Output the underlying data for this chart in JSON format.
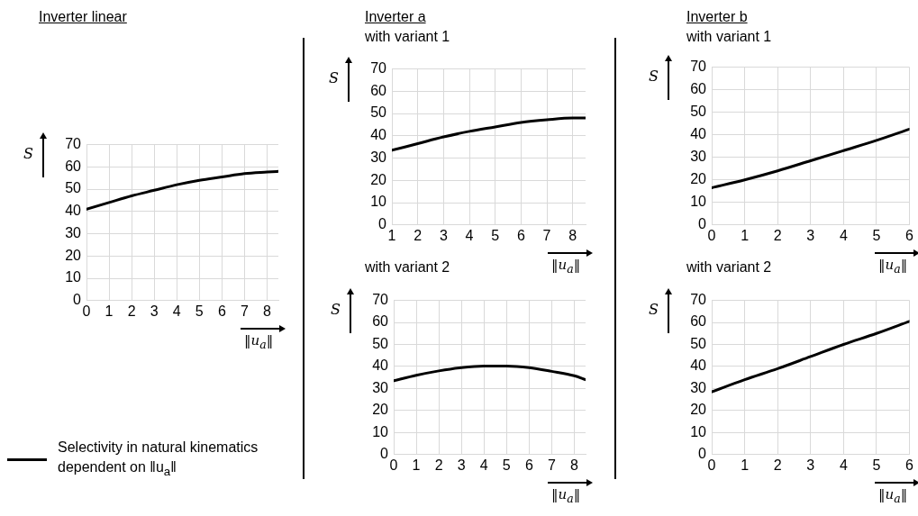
{
  "chart_data": [
    {
      "type": "line",
      "title": "Inverter linear",
      "xlabel": "‖u$_{a}$‖",
      "ylabel": "S",
      "x": [
        0,
        1,
        2,
        3,
        4,
        5,
        6,
        7,
        8,
        8.5
      ],
      "xlim": [
        0,
        8.5
      ],
      "xticks": [
        0,
        1,
        2,
        3,
        4,
        5,
        6,
        7,
        8
      ],
      "ylim": [
        0,
        70
      ],
      "yticks": [
        0,
        10,
        20,
        30,
        40,
        50,
        60,
        70
      ],
      "grid": true,
      "marker": "none",
      "line_style": "solid",
      "legend": "bottom left",
      "series": [
        {
          "name": "Selectivity in natural kinematics dependent on ‖u$_{a}$‖",
          "color": "#000000",
          "values": [
            41,
            44,
            47,
            49.5,
            52,
            54,
            55.5,
            57,
            57.7,
            58
          ]
        }
      ]
    },
    {
      "type": "line",
      "title": "Inverter a",
      "subtitle": "with variant 1",
      "xlabel": "‖u$_{a}$‖",
      "ylabel": "S",
      "x": [
        1,
        2,
        3,
        4,
        5,
        6,
        7,
        8,
        8.5
      ],
      "xlim": [
        1,
        8.5
      ],
      "xticks": [
        1,
        2,
        3,
        4,
        5,
        6,
        7,
        8
      ],
      "ylim": [
        0,
        70
      ],
      "yticks": [
        0,
        10,
        20,
        30,
        40,
        50,
        60,
        70
      ],
      "grid": true,
      "marker": "none",
      "line_style": "solid",
      "series": [
        {
          "color": "#000000",
          "values": [
            33.5,
            36.5,
            39.5,
            42,
            44,
            46,
            47.2,
            48,
            48
          ]
        }
      ]
    },
    {
      "type": "line",
      "title": "with variant 2",
      "xlabel": "‖u$_{a}$‖",
      "ylabel": "S",
      "x": [
        0,
        1,
        2,
        3,
        4,
        5,
        6,
        7,
        8,
        8.5
      ],
      "xlim": [
        0,
        8.5
      ],
      "xticks": [
        0,
        1,
        2,
        3,
        4,
        5,
        6,
        7,
        8
      ],
      "ylim": [
        0,
        70
      ],
      "yticks": [
        0,
        10,
        20,
        30,
        40,
        50,
        60,
        70
      ],
      "grid": true,
      "marker": "none",
      "line_style": "solid",
      "series": [
        {
          "color": "#000000",
          "values": [
            33.5,
            36,
            38,
            39.5,
            40.2,
            40.2,
            39.5,
            37.8,
            35.8,
            34
          ]
        }
      ]
    },
    {
      "type": "line",
      "title": "Inverter b",
      "subtitle": "with variant 1",
      "xlabel": "‖u$_{a}$‖",
      "ylabel": "S",
      "x": [
        0,
        1,
        2,
        3,
        4,
        5,
        6
      ],
      "xlim": [
        0,
        6
      ],
      "xticks": [
        0,
        1,
        2,
        3,
        4,
        5,
        6
      ],
      "ylim": [
        0,
        70
      ],
      "yticks": [
        0,
        10,
        20,
        30,
        40,
        50,
        60,
        70
      ],
      "grid": true,
      "marker": "none",
      "line_style": "solid",
      "series": [
        {
          "color": "#000000",
          "values": [
            16.5,
            20,
            24,
            28.5,
            33,
            37.5,
            42.5
          ]
        }
      ]
    },
    {
      "type": "line",
      "title": "with variant 2",
      "xlabel": "‖u$_{a}$‖",
      "ylabel": "S",
      "x": [
        0,
        1,
        2,
        3,
        4,
        5,
        6
      ],
      "xlim": [
        0,
        6
      ],
      "xticks": [
        0,
        1,
        2,
        3,
        4,
        5,
        6
      ],
      "ylim": [
        0,
        70
      ],
      "yticks": [
        0,
        10,
        20,
        30,
        40,
        50,
        60,
        70
      ],
      "grid": true,
      "marker": "none",
      "line_style": "solid",
      "series": [
        {
          "color": "#000000",
          "values": [
            28.5,
            34,
            39,
            44.5,
            50,
            55,
            60.5
          ]
        }
      ]
    }
  ]
}
